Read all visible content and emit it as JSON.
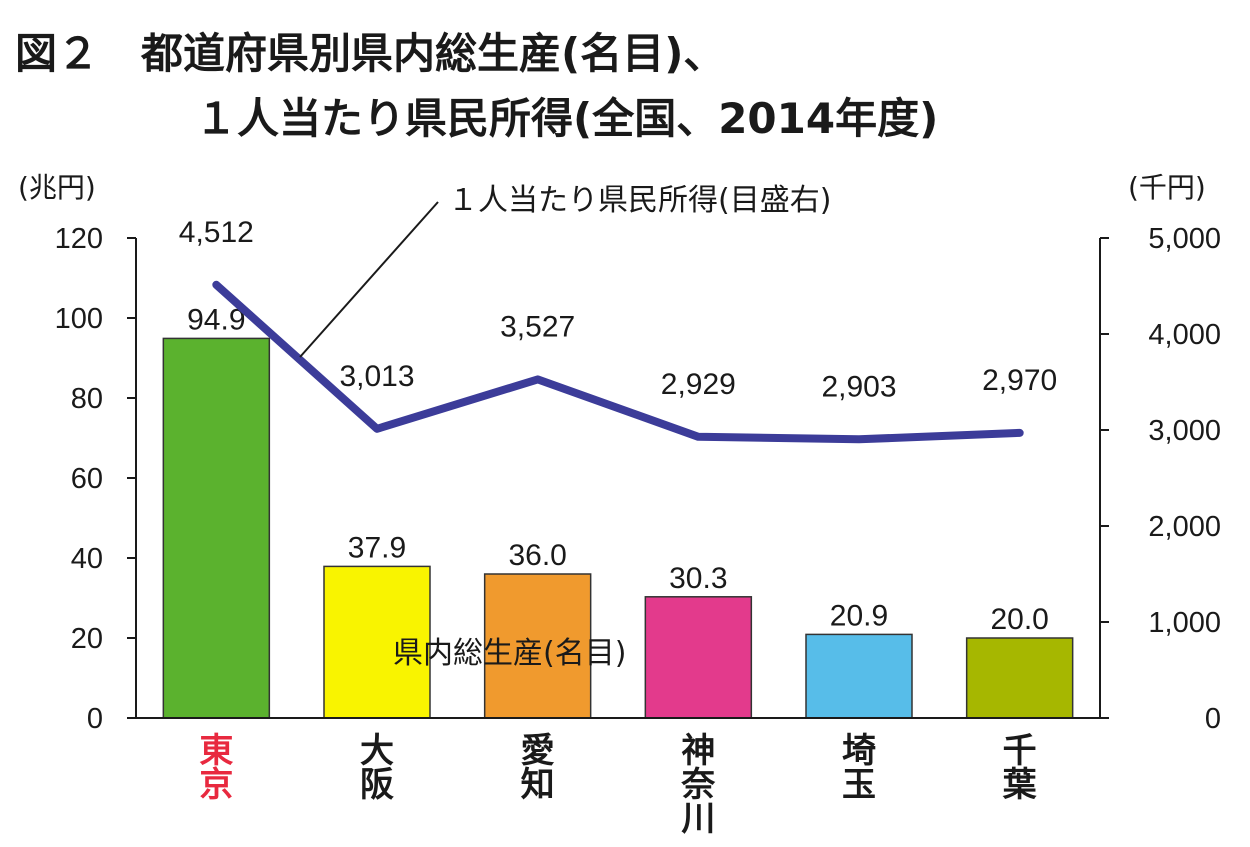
{
  "chart_data": {
    "type": "bar+line",
    "title_line1": "図２　都道府県別県内総生産(名目)、",
    "title_line2": "１人当たり県民所得(全国、2014年度)",
    "left_unit": "(兆円)",
    "right_unit": "(千円)",
    "categories": [
      "東京",
      "大阪",
      "愛知",
      "神奈川",
      "埼玉",
      "千葉"
    ],
    "category_colors": [
      "#e8293f",
      "#1a1a1a",
      "#1a1a1a",
      "#1a1a1a",
      "#1a1a1a",
      "#1a1a1a"
    ],
    "bar_series": {
      "name": "県内総生産(名目)",
      "values": [
        94.9,
        37.9,
        36.0,
        30.3,
        20.9,
        20.0
      ],
      "labels": [
        "94.9",
        "37.9",
        "36.0",
        "30.3",
        "20.9",
        "20.0"
      ],
      "colors": [
        "#5bb22e",
        "#f9f400",
        "#f09a2e",
        "#e33a8c",
        "#57bde9",
        "#a6b700"
      ]
    },
    "line_series": {
      "name": "１人当たり県民所得(目盛右)",
      "values": [
        4512,
        3013,
        3527,
        2929,
        2903,
        2970
      ],
      "labels": [
        "4,512",
        "3,013",
        "3,527",
        "2,929",
        "2,903",
        "2,970"
      ],
      "color": "#3c3c99"
    },
    "left_axis": {
      "ylim": [
        0,
        120
      ],
      "ticks": [
        "0",
        "20",
        "40",
        "60",
        "80",
        "100",
        "120"
      ]
    },
    "right_axis": {
      "ylim": [
        0,
        5000
      ],
      "ticks": [
        "0",
        "1,000",
        "2,000",
        "3,000",
        "4,000",
        "5,000"
      ]
    },
    "grid": false
  }
}
